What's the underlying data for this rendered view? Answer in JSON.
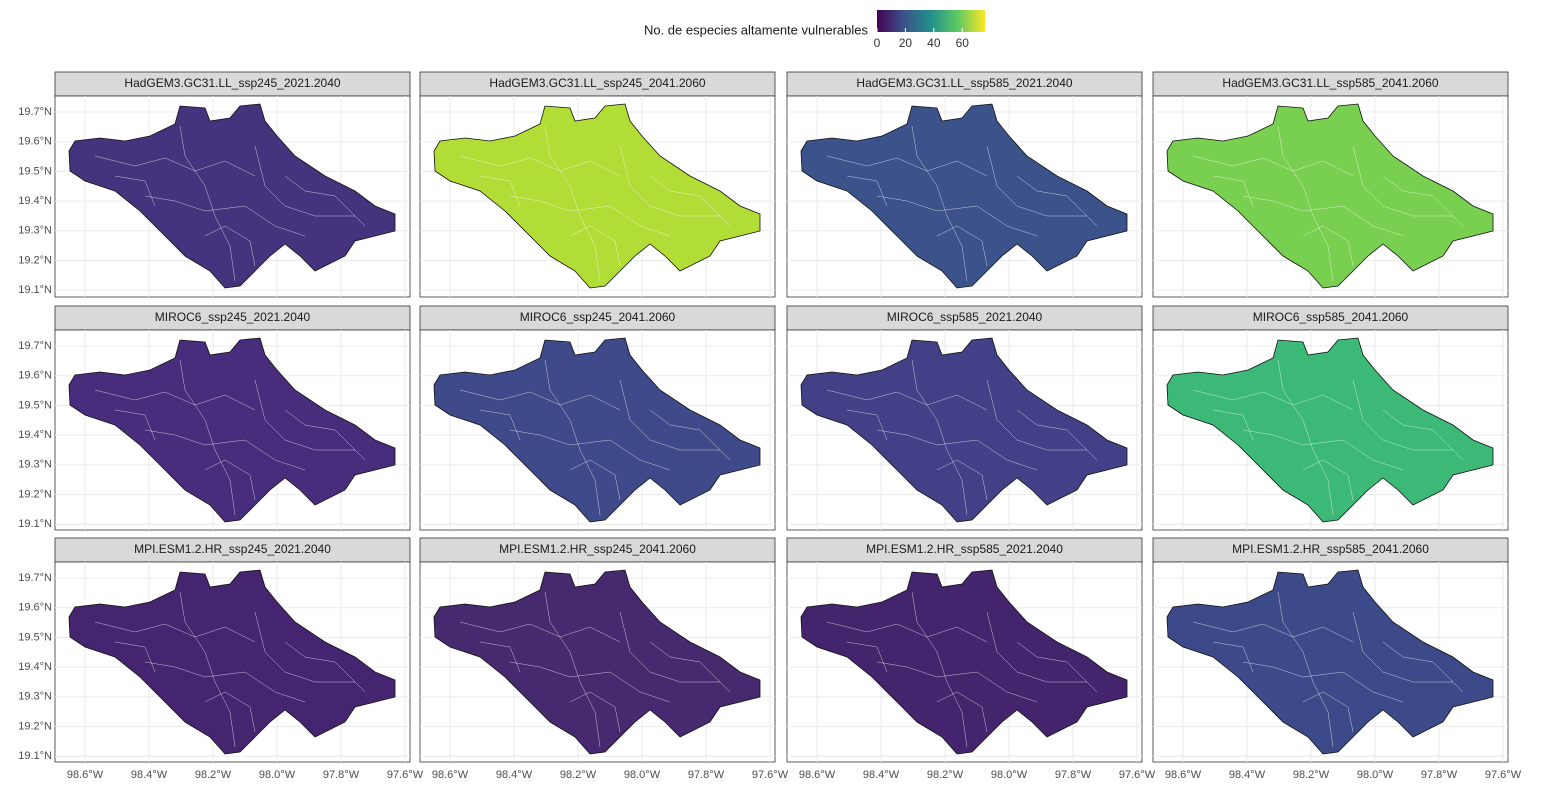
{
  "legend": {
    "title": "No. de especies altamente vulnerables",
    "range": [
      0,
      76
    ],
    "ticks": [
      0,
      20,
      40,
      60
    ],
    "colors": [
      "#440154",
      "#3b528b",
      "#21918c",
      "#5ec962",
      "#fde725"
    ]
  },
  "y_axis": [
    "19.7°N",
    "19.6°N",
    "19.5°N",
    "19.4°N",
    "19.3°N",
    "19.2°N",
    "19.1°N"
  ],
  "x_axis": [
    "98.6°W",
    "98.4°W",
    "98.2°W",
    "98.0°W",
    "97.8°W",
    "97.6°W"
  ],
  "panels": [
    {
      "title": "HadGEM3.GC31.LL_ssp245_2021.2040",
      "color": "#46337e"
    },
    {
      "title": "HadGEM3.GC31.LL_ssp245_2041.2060",
      "color": "#b2dc36"
    },
    {
      "title": "HadGEM3.GC31.LL_ssp585_2021.2040",
      "color": "#3b528b"
    },
    {
      "title": "HadGEM3.GC31.LL_ssp585_2041.2060",
      "color": "#79cf4f"
    },
    {
      "title": "MIROC6_ssp245_2021.2040",
      "color": "#472d7b"
    },
    {
      "title": "MIROC6_ssp245_2041.2060",
      "color": "#3e4a89"
    },
    {
      "title": "MIROC6_ssp585_2021.2040",
      "color": "#424086"
    },
    {
      "title": "MIROC6_ssp585_2041.2060",
      "color": "#3cb977"
    },
    {
      "title": "MPI.ESM1.2.HR_ssp245_2021.2040",
      "color": "#452470"
    },
    {
      "title": "MPI.ESM1.2.HR_ssp245_2041.2060",
      "color": "#46296f"
    },
    {
      "title": "MPI.ESM1.2.HR_ssp585_2021.2040",
      "color": "#45246e"
    },
    {
      "title": "MPI.ESM1.2.HR_ssp585_2041.2060",
      "color": "#3d4a89"
    }
  ]
}
